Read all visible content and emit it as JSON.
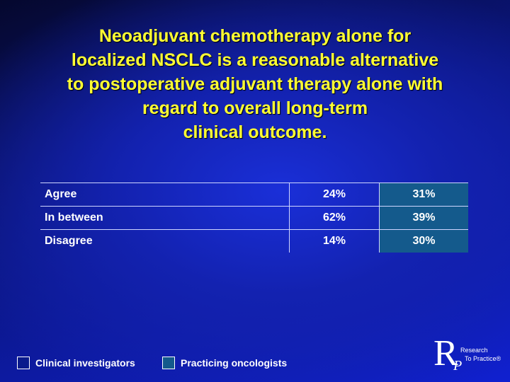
{
  "title_lines": [
    "Neoadjuvant chemotherapy alone for",
    "localized NSCLC is a reasonable alternative",
    "to postoperative adjuvant therapy alone with",
    "regard to overall long-term",
    "clinical outcome."
  ],
  "table": {
    "rows": [
      [
        "Agree",
        "24%",
        "31%"
      ],
      [
        "In between",
        "62%",
        "39%"
      ],
      [
        "Disagree",
        "14%",
        "30%"
      ]
    ]
  },
  "legend": [
    {
      "name": "Clinical investigators",
      "color": "#0a1a8c"
    },
    {
      "name": "Practicing oncologists",
      "color": "#145a8c"
    }
  ],
  "logo": {
    "letter_r": "R",
    "letter_p": "P",
    "line1": "Research",
    "line2": "To Practice®"
  }
}
